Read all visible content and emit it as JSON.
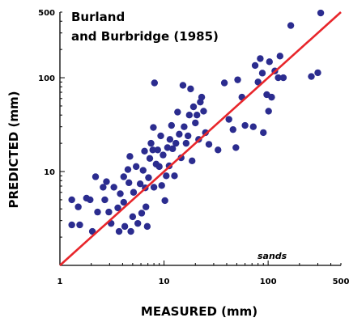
{
  "chart_data": {
    "type": "scatter",
    "title_lines": [
      "Burland",
      "and Burbridge (1985)"
    ],
    "xlabel": "MEASURED (mm)",
    "ylabel": "PREDICTED (mm)",
    "annotation": "sands",
    "x_scale": "log",
    "y_scale": "log",
    "xlim": [
      1,
      500
    ],
    "ylim": [
      1,
      500
    ],
    "xticks": [
      1,
      10,
      100,
      500
    ],
    "yticks": [
      10,
      100,
      500
    ],
    "x_tick_labels": [
      "1",
      "10",
      "100",
      "500"
    ],
    "y_tick_labels": [
      "10",
      "100",
      "500"
    ],
    "grid": false,
    "point_color": "#2b2c8f",
    "line_color": "#e8262b",
    "line": {
      "x": [
        1,
        500
      ],
      "y": [
        1,
        500
      ]
    },
    "points": [
      {
        "x": 1.3,
        "y": 2.7
      },
      {
        "x": 1.3,
        "y": 5.0
      },
      {
        "x": 1.5,
        "y": 4.2
      },
      {
        "x": 1.55,
        "y": 2.7
      },
      {
        "x": 1.8,
        "y": 5.2
      },
      {
        "x": 1.95,
        "y": 5.0
      },
      {
        "x": 2.05,
        "y": 2.3
      },
      {
        "x": 2.2,
        "y": 8.8
      },
      {
        "x": 2.3,
        "y": 3.7
      },
      {
        "x": 2.6,
        "y": 6.8
      },
      {
        "x": 2.7,
        "y": 5.0
      },
      {
        "x": 2.8,
        "y": 7.8
      },
      {
        "x": 2.95,
        "y": 3.7
      },
      {
        "x": 3.1,
        "y": 2.8
      },
      {
        "x": 3.3,
        "y": 6.8
      },
      {
        "x": 3.6,
        "y": 4.1
      },
      {
        "x": 3.7,
        "y": 2.3
      },
      {
        "x": 3.8,
        "y": 5.8
      },
      {
        "x": 4.1,
        "y": 4.7
      },
      {
        "x": 4.1,
        "y": 8.8
      },
      {
        "x": 4.2,
        "y": 2.6
      },
      {
        "x": 4.5,
        "y": 10.5
      },
      {
        "x": 4.6,
        "y": 7.6
      },
      {
        "x": 4.7,
        "y": 14.5
      },
      {
        "x": 4.8,
        "y": 2.3
      },
      {
        "x": 5.0,
        "y": 3.3
      },
      {
        "x": 5.1,
        "y": 6.0
      },
      {
        "x": 5.4,
        "y": 11.3
      },
      {
        "x": 5.6,
        "y": 2.8
      },
      {
        "x": 5.9,
        "y": 7.4
      },
      {
        "x": 6.1,
        "y": 3.6
      },
      {
        "x": 6.3,
        "y": 10.3
      },
      {
        "x": 6.5,
        "y": 16.5
      },
      {
        "x": 6.6,
        "y": 6.7
      },
      {
        "x": 6.7,
        "y": 4.2
      },
      {
        "x": 6.9,
        "y": 2.6
      },
      {
        "x": 7.1,
        "y": 8.6
      },
      {
        "x": 7.3,
        "y": 13.8
      },
      {
        "x": 7.5,
        "y": 20.0
      },
      {
        "x": 7.8,
        "y": 17.0
      },
      {
        "x": 7.9,
        "y": 29.5
      },
      {
        "x": 8.0,
        "y": 6.8
      },
      {
        "x": 8.1,
        "y": 88.0
      },
      {
        "x": 8.4,
        "y": 12.0
      },
      {
        "x": 8.7,
        "y": 17.0
      },
      {
        "x": 9.0,
        "y": 11.3
      },
      {
        "x": 9.3,
        "y": 24.0
      },
      {
        "x": 9.5,
        "y": 7.1
      },
      {
        "x": 9.8,
        "y": 15.0
      },
      {
        "x": 10.2,
        "y": 4.9
      },
      {
        "x": 10.5,
        "y": 9.0
      },
      {
        "x": 10.8,
        "y": 18.0
      },
      {
        "x": 11.2,
        "y": 11.5
      },
      {
        "x": 11.4,
        "y": 22.0
      },
      {
        "x": 11.8,
        "y": 31.0
      },
      {
        "x": 12.1,
        "y": 17.5
      },
      {
        "x": 12.6,
        "y": 9.0
      },
      {
        "x": 13.0,
        "y": 20.0
      },
      {
        "x": 13.5,
        "y": 43.0
      },
      {
        "x": 14.0,
        "y": 25.0
      },
      {
        "x": 14.6,
        "y": 14.0
      },
      {
        "x": 15.2,
        "y": 83.0
      },
      {
        "x": 15.6,
        "y": 30.0
      },
      {
        "x": 16.3,
        "y": 20.0
      },
      {
        "x": 17.0,
        "y": 24.0
      },
      {
        "x": 17.5,
        "y": 40.0
      },
      {
        "x": 18.0,
        "y": 76.0
      },
      {
        "x": 18.6,
        "y": 13.0
      },
      {
        "x": 19.2,
        "y": 49.0
      },
      {
        "x": 20.0,
        "y": 33.0
      },
      {
        "x": 20.7,
        "y": 40.0
      },
      {
        "x": 21.5,
        "y": 22.0
      },
      {
        "x": 22.3,
        "y": 55.0
      },
      {
        "x": 23.0,
        "y": 62.0
      },
      {
        "x": 24.0,
        "y": 44.0
      },
      {
        "x": 25.0,
        "y": 26.0
      },
      {
        "x": 27.0,
        "y": 19.5
      },
      {
        "x": 33.0,
        "y": 17.0
      },
      {
        "x": 38.0,
        "y": 88.0
      },
      {
        "x": 42.0,
        "y": 36.0
      },
      {
        "x": 46.0,
        "y": 28.0
      },
      {
        "x": 49.0,
        "y": 18.0
      },
      {
        "x": 51.0,
        "y": 95.0
      },
      {
        "x": 56.0,
        "y": 62.0
      },
      {
        "x": 60.0,
        "y": 31.0
      },
      {
        "x": 72.0,
        "y": 30.0
      },
      {
        "x": 75.0,
        "y": 135.0
      },
      {
        "x": 80.0,
        "y": 90.0
      },
      {
        "x": 84.0,
        "y": 160.0
      },
      {
        "x": 88.0,
        "y": 112.0
      },
      {
        "x": 90.0,
        "y": 26.0
      },
      {
        "x": 97.0,
        "y": 66.0
      },
      {
        "x": 101.0,
        "y": 44.0
      },
      {
        "x": 103.0,
        "y": 148.0
      },
      {
        "x": 108.0,
        "y": 62.0
      },
      {
        "x": 116.0,
        "y": 118.0
      },
      {
        "x": 125.0,
        "y": 100.0
      },
      {
        "x": 130.0,
        "y": 170.0
      },
      {
        "x": 140.0,
        "y": 100.0
      },
      {
        "x": 165.0,
        "y": 360.0
      },
      {
        "x": 260.0,
        "y": 103.0
      },
      {
        "x": 300.0,
        "y": 113.0
      },
      {
        "x": 320.0,
        "y": 490.0
      }
    ]
  }
}
